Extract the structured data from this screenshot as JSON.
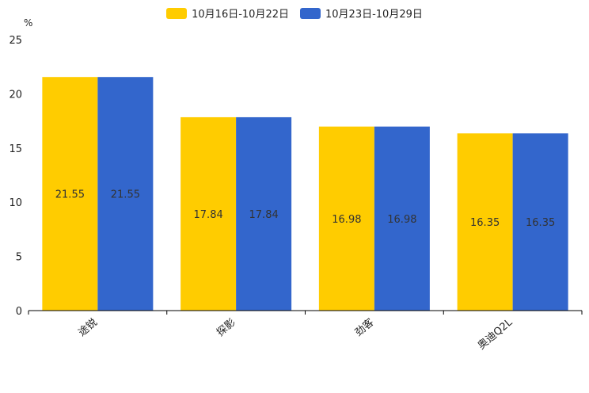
{
  "chart_data": {
    "type": "bar",
    "unit_label": "%",
    "categories": [
      "途锐",
      "探影",
      "劲客",
      "奥迪Q2L"
    ],
    "series": [
      {
        "name": "10月16日-10月22日",
        "color": "#FFCC00",
        "values": [
          21.55,
          17.84,
          16.98,
          16.35
        ]
      },
      {
        "name": "10月23日-10月29日",
        "color": "#3366CC",
        "values": [
          21.55,
          17.84,
          16.98,
          16.35
        ]
      }
    ],
    "ylim": [
      0,
      25
    ],
    "yticks": [
      0,
      5,
      10,
      15,
      20,
      25
    ],
    "legend_position": "top-center",
    "grid": false
  }
}
